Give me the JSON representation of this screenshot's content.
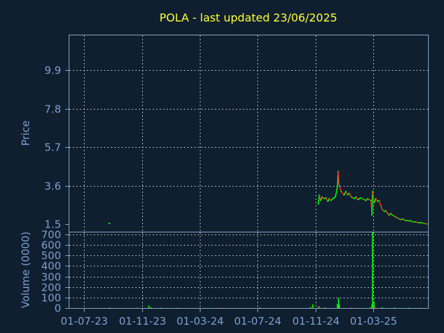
{
  "chart_data": [
    {
      "type": "line",
      "title": "POLA - last updated 23/06/2025",
      "xlabel": "",
      "ylabel": "Price",
      "ylim": [
        1.1,
        11.8
      ],
      "yticks": [
        "9.9",
        "7.8",
        "5.7",
        "3.6",
        "1.5"
      ],
      "ytick_values": [
        9.9,
        7.8,
        5.7,
        3.6,
        1.5
      ],
      "grid": true,
      "colors": {
        "up": "#00ff00",
        "down": "#ff2020",
        "grid": "#c8d2de",
        "background": "#0f1f30"
      },
      "series": [
        {
          "values_by_date": [
            [
              "2023-08-24",
              1.55
            ],
            [
              "2024-11-06",
              2.6
            ],
            [
              "2024-11-08",
              3.1
            ],
            [
              "2024-11-11",
              2.8
            ],
            [
              "2024-11-14",
              3.0
            ],
            [
              "2024-11-18",
              2.9
            ],
            [
              "2024-11-22",
              2.95
            ],
            [
              "2024-11-26",
              2.75
            ],
            [
              "2024-11-29",
              2.9
            ],
            [
              "2024-12-03",
              2.8
            ],
            [
              "2024-12-06",
              2.9
            ],
            [
              "2024-12-09",
              2.95
            ],
            [
              "2024-12-12",
              3.0
            ],
            [
              "2024-12-16",
              3.5
            ],
            [
              "2024-12-18",
              4.4
            ],
            [
              "2024-12-20",
              3.6
            ],
            [
              "2024-12-24",
              3.3
            ],
            [
              "2024-12-30",
              3.1
            ],
            [
              "2025-01-03",
              3.3
            ],
            [
              "2025-01-07",
              3.1
            ],
            [
              "2025-01-10",
              3.2
            ],
            [
              "2025-01-14",
              3.0
            ],
            [
              "2025-01-17",
              2.95
            ],
            [
              "2025-01-21",
              2.9
            ],
            [
              "2025-01-24",
              3.0
            ],
            [
              "2025-01-28",
              2.85
            ],
            [
              "2025-01-31",
              2.9
            ],
            [
              "2025-02-04",
              2.95
            ],
            [
              "2025-02-07",
              2.9
            ],
            [
              "2025-02-11",
              2.85
            ],
            [
              "2025-02-14",
              2.8
            ],
            [
              "2025-02-18",
              2.9
            ],
            [
              "2025-02-21",
              2.85
            ],
            [
              "2025-02-25",
              2.8
            ],
            [
              "2025-02-27",
              2.0
            ],
            [
              "2025-02-28",
              3.3
            ],
            [
              "2025-03-04",
              2.7
            ],
            [
              "2025-03-07",
              2.9
            ],
            [
              "2025-03-11",
              2.75
            ],
            [
              "2025-03-14",
              2.8
            ],
            [
              "2025-03-18",
              2.5
            ],
            [
              "2025-03-21",
              2.3
            ],
            [
              "2025-03-25",
              2.2
            ],
            [
              "2025-03-28",
              2.25
            ],
            [
              "2025-04-01",
              2.1
            ],
            [
              "2025-04-04",
              2.0
            ],
            [
              "2025-04-08",
              2.1
            ],
            [
              "2025-04-11",
              2.0
            ],
            [
              "2025-04-15",
              1.95
            ],
            [
              "2025-04-18",
              1.9
            ],
            [
              "2025-04-22",
              1.85
            ],
            [
              "2025-04-25",
              1.8
            ],
            [
              "2025-04-29",
              1.75
            ],
            [
              "2025-05-02",
              1.8
            ],
            [
              "2025-05-06",
              1.75
            ],
            [
              "2025-05-09",
              1.7
            ],
            [
              "2025-05-13",
              1.72
            ],
            [
              "2025-05-16",
              1.68
            ],
            [
              "2025-05-20",
              1.7
            ],
            [
              "2025-05-23",
              1.65
            ],
            [
              "2025-05-27",
              1.62
            ],
            [
              "2025-05-30",
              1.64
            ],
            [
              "2025-06-03",
              1.6
            ],
            [
              "2025-06-06",
              1.58
            ],
            [
              "2025-06-10",
              1.6
            ],
            [
              "2025-06-13",
              1.57
            ],
            [
              "2025-06-17",
              1.55
            ],
            [
              "2025-06-23",
              1.52
            ]
          ]
        }
      ]
    },
    {
      "type": "bar",
      "xlabel": "",
      "ylabel": "Volume (0000)",
      "ylim": [
        0,
        720
      ],
      "yticks": [
        "0",
        "100",
        "200",
        "300",
        "400",
        "500",
        "600",
        "700"
      ],
      "ytick_values": [
        0,
        100,
        200,
        300,
        400,
        500,
        600,
        700
      ],
      "xticks": [
        "01-07-23",
        "01-11-23",
        "01-03-24",
        "01-07-24",
        "01-11-24",
        "01-03-25"
      ],
      "xtick_dates": [
        "2023-07-01",
        "2023-11-01",
        "2024-03-01",
        "2024-07-01",
        "2024-11-01",
        "2025-03-01"
      ],
      "grid": true,
      "series": [
        {
          "values_by_date": [
            [
              "2023-08-24",
              4
            ],
            [
              "2023-10-20",
              3
            ],
            [
              "2023-11-15",
              25
            ],
            [
              "2023-11-20",
              8
            ],
            [
              "2023-12-10",
              4
            ],
            [
              "2024-01-15",
              3
            ],
            [
              "2024-04-10",
              3
            ],
            [
              "2024-07-05",
              6
            ],
            [
              "2024-10-20",
              8
            ],
            [
              "2024-10-25",
              35
            ],
            [
              "2024-11-06",
              12
            ],
            [
              "2024-11-08",
              18
            ],
            [
              "2024-11-20",
              6
            ],
            [
              "2024-12-16",
              40
            ],
            [
              "2024-12-18",
              95
            ],
            [
              "2024-12-20",
              30
            ],
            [
              "2025-01-15",
              8
            ],
            [
              "2025-02-25",
              10
            ],
            [
              "2025-02-27",
              40
            ],
            [
              "2025-02-28",
              720
            ],
            [
              "2025-03-03",
              60
            ],
            [
              "2025-03-05",
              15
            ],
            [
              "2025-03-20",
              8
            ],
            [
              "2025-04-15",
              5
            ],
            [
              "2025-05-15",
              4
            ],
            [
              "2025-06-10",
              3
            ]
          ]
        }
      ]
    }
  ]
}
